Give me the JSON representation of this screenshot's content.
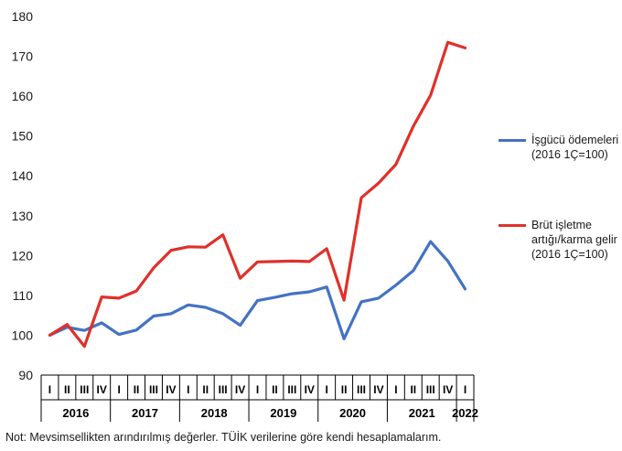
{
  "chart_data": {
    "type": "line",
    "y_ticks": [
      "180",
      "170",
      "160",
      "150",
      "140",
      "130",
      "120",
      "110",
      "100",
      "90"
    ],
    "ylim": [
      90,
      180
    ],
    "grid": false,
    "legend_position": "right",
    "quarter_labels": [
      "I",
      "II",
      "III",
      "IV",
      "I",
      "II",
      "III",
      "IV",
      "I",
      "II",
      "III",
      "IV",
      "I",
      "II",
      "III",
      "IV",
      "I",
      "II",
      "III",
      "IV",
      "I",
      "II",
      "III",
      "IV",
      "I"
    ],
    "years": [
      {
        "label": "2016",
        "quarters": 4
      },
      {
        "label": "2017",
        "quarters": 4
      },
      {
        "label": "2018",
        "quarters": 4
      },
      {
        "label": "2019",
        "quarters": 4
      },
      {
        "label": "2020",
        "quarters": 4
      },
      {
        "label": "2021",
        "quarters": 4
      },
      {
        "label": "2022",
        "quarters": 1
      }
    ],
    "series": [
      {
        "name": "İşgücü ödemeleri (2016 1Ç=100)",
        "color": "#4472c4",
        "values": [
          100,
          102,
          101.2,
          103.1,
          100.2,
          101.3,
          104.8,
          105.4,
          107.6,
          107.0,
          105.4,
          102.5,
          108.7,
          109.5,
          110.4,
          110.9,
          112.1,
          99.1,
          108.4,
          109.3,
          112.6,
          116.2,
          123.5,
          118.6,
          111.6
        ]
      },
      {
        "name": "Brüt işletme artığı/karma gelir (2016 1Ç=100)",
        "color": "#e0302a",
        "values": [
          100,
          102.7,
          97.2,
          109.6,
          109.3,
          111.1,
          116.9,
          121.3,
          122.2,
          122.1,
          125.2,
          114.3,
          118.4,
          118.5,
          118.6,
          118.5,
          121.7,
          108.8,
          134.5,
          138.2,
          142.9,
          152.4,
          160.2,
          173.5,
          172.1
        ]
      }
    ]
  },
  "legend_entries": [
    {
      "text": "İşgücü ödemeleri (2016 1Ç=100)",
      "color": "#4472c4"
    },
    {
      "text": "Brüt işletme artığı/karma gelir (2016 1Ç=100)",
      "color": "#e0302a"
    }
  ],
  "note": "Not: Mevsimsellikten arındırılmış değerler. TÜİK verilerine göre kendi hesaplamalarım."
}
